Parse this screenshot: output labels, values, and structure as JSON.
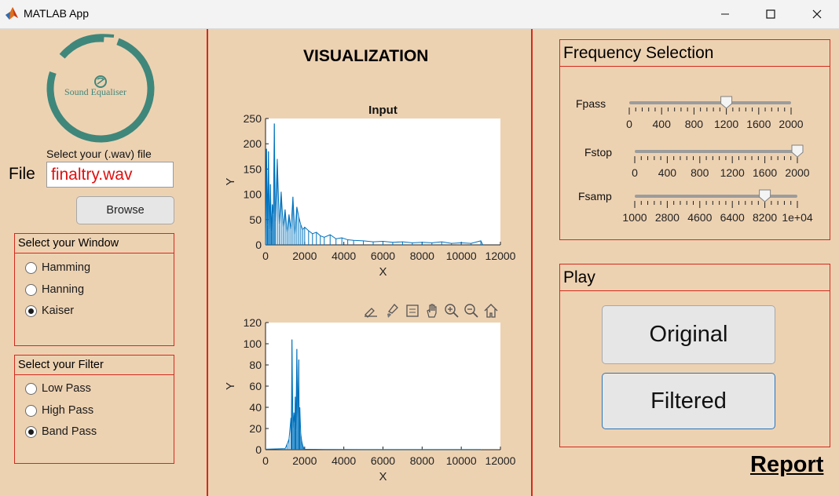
{
  "window": {
    "title": "MATLAB App",
    "controls": {
      "minimize_icon": "minimize-icon",
      "maximize_icon": "maximize-icon",
      "close_icon": "close-icon"
    }
  },
  "left": {
    "logo_text": "Sound Equaliser",
    "file_prompt": "Select your (.wav) file",
    "file_label": "File",
    "file_value": "finaltry.wav",
    "browse_label": "Browse",
    "window_group": {
      "title": "Select your Window",
      "options": [
        "Hamming",
        "Hanning",
        "Kaiser"
      ],
      "selected": "Kaiser"
    },
    "filter_group": {
      "title": "Select your Filter",
      "options": [
        "Low Pass",
        "High Pass",
        "Band Pass"
      ],
      "selected": "Band Pass"
    }
  },
  "center": {
    "heading": "VISUALIZATION",
    "toolbar_icons": [
      "export-icon",
      "brush-icon",
      "datatip-icon",
      "pan-icon",
      "zoom-in-icon",
      "zoom-out-icon",
      "home-icon"
    ]
  },
  "right": {
    "freq_group": {
      "title": "Frequency Selection",
      "sliders": [
        {
          "label": "Fpass",
          "ticks": [
            "0",
            "400",
            "800",
            "1200",
            "1600",
            "2000"
          ],
          "min": 0,
          "max": 2000,
          "value": 1200
        },
        {
          "label": "Fstop",
          "ticks": [
            "0",
            "400",
            "800",
            "1200",
            "1600",
            "2000"
          ],
          "min": 0,
          "max": 2000,
          "value": 2000
        },
        {
          "label": "Fsamp",
          "ticks": [
            "1000",
            "2800",
            "4600",
            "6400",
            "8200",
            "1e+04"
          ],
          "min": 1000,
          "max": 10000,
          "value": 8200
        }
      ]
    },
    "play_group": {
      "title": "Play",
      "original_label": "Original",
      "filtered_label": "Filtered"
    },
    "report_label": "Report"
  },
  "colors": {
    "background": "#edd2b2",
    "border": "#d42a1e",
    "plot_line": "#0072bd",
    "logo": "#3f877b",
    "file_text": "#e01010"
  },
  "chart_data": [
    {
      "type": "line",
      "title": "Input",
      "xlabel": "X",
      "ylabel": "Y",
      "xlim": [
        0,
        12000
      ],
      "ylim": [
        0,
        250
      ],
      "xticks": [
        "0",
        "2000",
        "4000",
        "6000",
        "8000",
        "10000",
        "12000"
      ],
      "yticks": [
        "0",
        "50",
        "100",
        "150",
        "200",
        "250"
      ],
      "series": [
        {
          "x": [
            0,
            50,
            100,
            150,
            200,
            250,
            300,
            350,
            400,
            450,
            500,
            600,
            700,
            800,
            900,
            1000,
            1100,
            1200,
            1300,
            1400,
            1500,
            1600,
            1700,
            1800,
            1900,
            2000,
            2200,
            2400,
            2600,
            2800,
            3000,
            3300,
            3600,
            3900,
            4200,
            4500,
            5000,
            5500,
            6000,
            6500,
            7000,
            7500,
            8000,
            8500,
            9000,
            9500,
            10000,
            10500,
            11000,
            11100
          ],
          "y": [
            10,
            190,
            40,
            185,
            30,
            120,
            25,
            80,
            60,
            240,
            45,
            170,
            40,
            105,
            35,
            70,
            25,
            60,
            30,
            95,
            20,
            75,
            55,
            40,
            30,
            35,
            28,
            22,
            25,
            18,
            15,
            20,
            12,
            14,
            10,
            9,
            8,
            6,
            7,
            5,
            6,
            4,
            5,
            4,
            6,
            3,
            4,
            3,
            8,
            0
          ]
        }
      ]
    },
    {
      "type": "line",
      "title": "",
      "xlabel": "X",
      "ylabel": "Y",
      "xlim": [
        0,
        12000
      ],
      "ylim": [
        0,
        120
      ],
      "xticks": [
        "0",
        "2000",
        "4000",
        "6000",
        "8000",
        "10000",
        "12000"
      ],
      "yticks": [
        "0",
        "20",
        "40",
        "60",
        "80",
        "100",
        "120"
      ],
      "series": [
        {
          "x": [
            0,
            1000,
            1100,
            1200,
            1300,
            1320,
            1350,
            1400,
            1450,
            1500,
            1520,
            1550,
            1600,
            1650,
            1700,
            1720,
            1750,
            1800,
            1850,
            1900,
            1950,
            2000,
            3000,
            5000,
            8000,
            11000
          ],
          "y": [
            0.5,
            1,
            5,
            10,
            30,
            15,
            104,
            20,
            35,
            25,
            50,
            18,
            95,
            30,
            85,
            20,
            40,
            15,
            8,
            4,
            1.5,
            0.5,
            0.3,
            0.2,
            0.2,
            0.2
          ]
        }
      ]
    }
  ]
}
